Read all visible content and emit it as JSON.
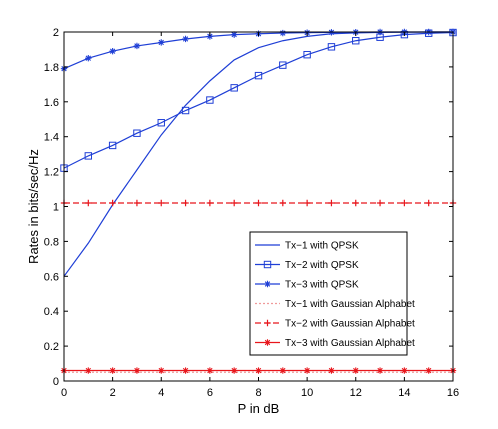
{
  "chart_data": {
    "type": "line",
    "title": "",
    "xlabel": "P in dB",
    "ylabel": "Rates in bits/sec/Hz",
    "xlim": [
      0,
      16
    ],
    "ylim": [
      0,
      2
    ],
    "xticks": [
      0,
      2,
      4,
      6,
      8,
      10,
      12,
      14,
      16
    ],
    "yticks": [
      0,
      0.2,
      0.4,
      0.6,
      0.8,
      1,
      1.2,
      1.4,
      1.6,
      1.8,
      2
    ],
    "xtick_labels": [
      "0",
      "2",
      "4",
      "6",
      "8",
      "10",
      "12",
      "14",
      "16"
    ],
    "ytick_labels": [
      "0",
      "0.2",
      "0.4",
      "0.6",
      "0.8",
      "1",
      "1.2",
      "1.4",
      "1.6",
      "1.8",
      "2"
    ],
    "grid": false,
    "legend_position": "center-right",
    "x": [
      0,
      1,
      2,
      3,
      4,
      5,
      6,
      7,
      8,
      9,
      10,
      11,
      12,
      13,
      14,
      15,
      16
    ],
    "series": [
      {
        "name": "Tx−1 with QPSK",
        "color": "#1f3fd6",
        "line": "solid",
        "marker": "none",
        "values": [
          0.6,
          0.79,
          1.01,
          1.21,
          1.41,
          1.58,
          1.72,
          1.84,
          1.91,
          1.95,
          1.975,
          1.99,
          1.995,
          1.998,
          1.999,
          2.0,
          2.0
        ]
      },
      {
        "name": "Tx−2 with QPSK",
        "color": "#1f3fd6",
        "line": "solid",
        "marker": "square",
        "values": [
          1.22,
          1.29,
          1.35,
          1.42,
          1.48,
          1.55,
          1.61,
          1.68,
          1.75,
          1.81,
          1.87,
          1.915,
          1.95,
          1.97,
          1.985,
          1.993,
          1.997
        ]
      },
      {
        "name": "Tx−3 with QPSK",
        "color": "#1f3fd6",
        "line": "solid",
        "marker": "star",
        "values": [
          1.79,
          1.85,
          1.89,
          1.92,
          1.94,
          1.96,
          1.975,
          1.985,
          1.99,
          1.994,
          1.996,
          1.998,
          1.999,
          2.0,
          2.0,
          2.0,
          2.0
        ]
      },
      {
        "name": "Tx−1 with Gaussian Alphabet",
        "color": "#f09a9a",
        "line": "dotted",
        "marker": "none",
        "values": [
          0.05,
          0.05,
          0.05,
          0.05,
          0.05,
          0.05,
          0.05,
          0.05,
          0.05,
          0.05,
          0.05,
          0.05,
          0.05,
          0.05,
          0.05,
          0.05,
          0.05
        ]
      },
      {
        "name": "Tx−2 with Gaussian Alphabet",
        "color": "#e8161c",
        "line": "dashed",
        "marker": "plus",
        "values": [
          1.02,
          1.02,
          1.02,
          1.02,
          1.02,
          1.02,
          1.02,
          1.02,
          1.02,
          1.02,
          1.02,
          1.02,
          1.02,
          1.02,
          1.02,
          1.02,
          1.02
        ]
      },
      {
        "name": "Tx−3 with Gaussian Alphabet",
        "color": "#e8161c",
        "line": "solid",
        "marker": "star",
        "values": [
          0.06,
          0.06,
          0.06,
          0.06,
          0.06,
          0.06,
          0.06,
          0.06,
          0.06,
          0.06,
          0.06,
          0.06,
          0.06,
          0.06,
          0.06,
          0.06,
          0.06
        ]
      }
    ]
  }
}
